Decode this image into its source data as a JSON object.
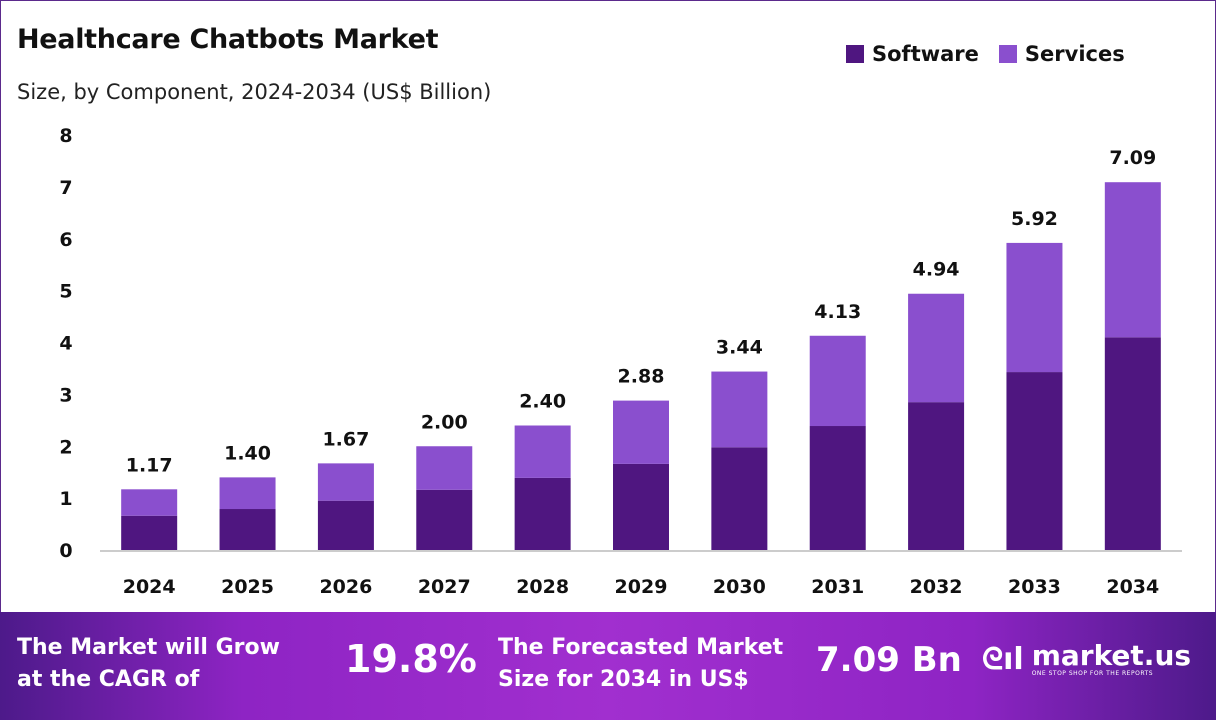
{
  "chart_data": {
    "type": "bar",
    "stacked": true,
    "title": "Healthcare Chatbots Market",
    "subtitle": "Size, by Component, 2024-2034 (US$ Billion)",
    "categories": [
      "2024",
      "2025",
      "2026",
      "2027",
      "2028",
      "2029",
      "2030",
      "2031",
      "2032",
      "2033",
      "2034"
    ],
    "series": [
      {
        "name": "Software",
        "color": "#4f1680",
        "values": [
          0.66,
          0.79,
          0.95,
          1.16,
          1.39,
          1.66,
          1.98,
          2.39,
          2.85,
          3.43,
          4.1
        ]
      },
      {
        "name": "Services",
        "color": "#8a4fce",
        "values": [
          0.51,
          0.61,
          0.72,
          0.84,
          1.01,
          1.22,
          1.46,
          1.74,
          2.09,
          2.49,
          2.99
        ]
      }
    ],
    "totals": [
      "1.17",
      "1.40",
      "1.67",
      "2.00",
      "2.40",
      "2.88",
      "3.44",
      "4.13",
      "4.94",
      "5.92",
      "7.09"
    ],
    "ylim": [
      0,
      8
    ],
    "yticks": [
      "0",
      "1",
      "2",
      "3",
      "4",
      "5",
      "6",
      "7",
      "8"
    ],
    "grid": false,
    "legend": "top-right"
  },
  "footer": {
    "cagr_label_1": "The Market will Grow",
    "cagr_label_2": "at the CAGR of",
    "cagr_value": "19.8%",
    "forecast_label_1": "The Forecasted Market",
    "forecast_label_2": "Size for 2034 in US$",
    "forecast_value": "7.09 Bn",
    "logo_name": "market.us",
    "logo_tagline": "ONE STOP SHOP FOR THE REPORTS"
  }
}
